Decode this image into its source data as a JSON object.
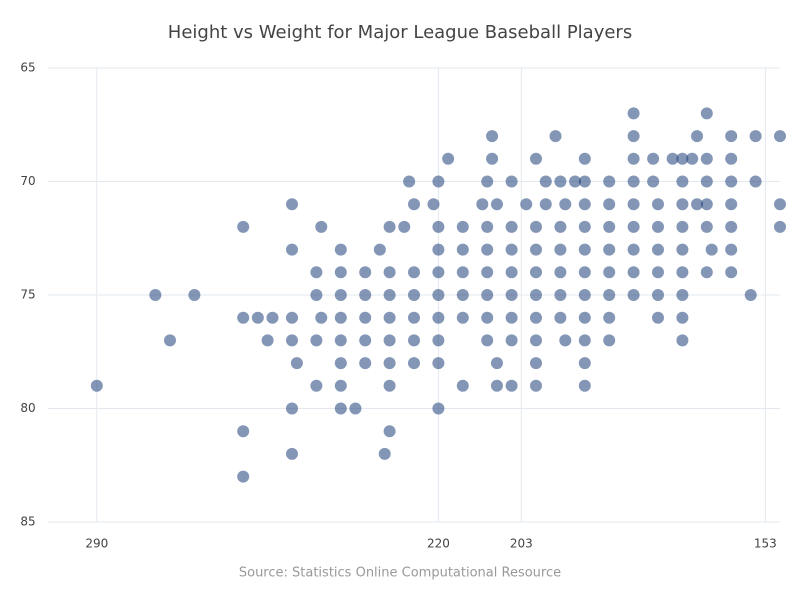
{
  "chart_data": {
    "type": "scatter",
    "title": "Height vs Weight for Major League Baseball Players",
    "source": "Source: Statistics Online Computational Resource",
    "color": "#1f3f7a",
    "xlim": [
      300,
      150
    ],
    "xticks": [
      290,
      220,
      203,
      153
    ],
    "ylim": [
      65,
      85
    ],
    "yticks": [
      65,
      70,
      75,
      80,
      85
    ],
    "grid": true,
    "x": [
      180,
      165,
      209,
      196,
      180,
      167,
      160,
      155,
      150,
      218,
      209,
      200,
      190,
      180,
      176,
      172,
      170,
      168,
      165,
      160,
      226,
      220,
      210,
      205,
      198,
      195,
      192,
      190,
      185,
      180,
      176,
      170,
      165,
      160,
      155,
      250,
      225,
      221,
      211,
      208,
      202,
      198,
      194,
      190,
      185,
      180,
      175,
      170,
      167,
      165,
      160,
      150,
      260,
      244,
      230,
      227,
      220,
      215,
      210,
      205,
      200,
      195,
      190,
      185,
      180,
      175,
      170,
      165,
      160,
      150,
      250,
      240,
      232,
      220,
      215,
      210,
      205,
      200,
      195,
      190,
      185,
      180,
      175,
      170,
      164,
      160,
      245,
      240,
      235,
      230,
      225,
      220,
      215,
      210,
      205,
      200,
      195,
      190,
      185,
      180,
      175,
      170,
      165,
      160,
      278,
      270,
      245,
      240,
      235,
      230,
      225,
      220,
      215,
      210,
      205,
      200,
      195,
      190,
      185,
      180,
      175,
      170,
      156,
      260,
      257,
      254,
      250,
      244,
      240,
      235,
      230,
      225,
      220,
      215,
      210,
      205,
      200,
      195,
      190,
      185,
      175,
      170,
      275,
      255,
      250,
      245,
      240,
      235,
      230,
      225,
      220,
      210,
      205,
      200,
      194,
      190,
      185,
      170,
      249,
      240,
      235,
      230,
      225,
      220,
      208,
      200,
      190,
      290,
      245,
      240,
      230,
      215,
      208,
      205,
      200,
      190,
      250,
      240,
      237,
      220,
      260,
      230,
      250,
      231,
      260
    ],
    "y": [
      67,
      67,
      68,
      68,
      68,
      68,
      68,
      68,
      68,
      69,
      69,
      69,
      69,
      69,
      69,
      69,
      69,
      69,
      69,
      69,
      70,
      70,
      70,
      70,
      70,
      70,
      70,
      70,
      70,
      70,
      70,
      70,
      70,
      70,
      70,
      71,
      71,
      71,
      71,
      71,
      71,
      71,
      71,
      71,
      71,
      71,
      71,
      71,
      71,
      71,
      71,
      71,
      72,
      72,
      72,
      72,
      72,
      72,
      72,
      72,
      72,
      72,
      72,
      72,
      72,
      72,
      72,
      72,
      72,
      72,
      73,
      73,
      73,
      73,
      73,
      73,
      73,
      73,
      73,
      73,
      73,
      73,
      73,
      73,
      73,
      73,
      74,
      74,
      74,
      74,
      74,
      74,
      74,
      74,
      74,
      74,
      74,
      74,
      74,
      74,
      74,
      74,
      74,
      74,
      75,
      75,
      75,
      75,
      75,
      75,
      75,
      75,
      75,
      75,
      75,
      75,
      75,
      75,
      75,
      75,
      75,
      75,
      75,
      76,
      76,
      76,
      76,
      76,
      76,
      76,
      76,
      76,
      76,
      76,
      76,
      76,
      76,
      76,
      76,
      76,
      76,
      76,
      77,
      77,
      77,
      77,
      77,
      77,
      77,
      77,
      77,
      77,
      77,
      77,
      77,
      77,
      77,
      77,
      78,
      78,
      78,
      78,
      78,
      78,
      78,
      78,
      78,
      79,
      79,
      79,
      79,
      79,
      79,
      79,
      79,
      79,
      80,
      80,
      80,
      80,
      81,
      81,
      82,
      82,
      83
    ]
  }
}
